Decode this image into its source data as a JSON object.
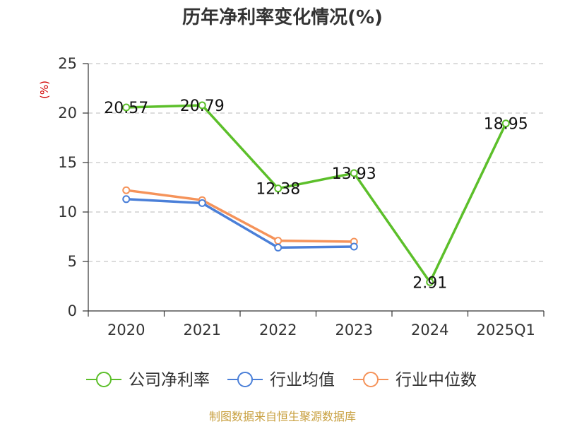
{
  "chart_data": {
    "type": "line",
    "title": "历年净利率变化情况(%)",
    "unit_label": "(%)",
    "categories": [
      "2020",
      "2021",
      "2022",
      "2023",
      "2024",
      "2025Q1"
    ],
    "ylim": [
      0,
      25
    ],
    "yticks": [
      0,
      5,
      10,
      15,
      20,
      25
    ],
    "grid": true,
    "legend_position": "bottom",
    "series": [
      {
        "name": "公司净利率",
        "color": "#5cbf2a",
        "values": [
          20.57,
          20.79,
          12.38,
          13.93,
          2.91,
          18.95
        ],
        "labels": [
          "20.57",
          "20.79",
          "12.38",
          "13.93",
          "2.91",
          "18.95"
        ]
      },
      {
        "name": "行业均值",
        "color": "#4a7fd8",
        "values": [
          11.3,
          10.9,
          6.4,
          6.5,
          null,
          null
        ]
      },
      {
        "name": "行业中位数",
        "color": "#f5935a",
        "values": [
          12.2,
          11.2,
          7.1,
          7.0,
          null,
          null
        ]
      }
    ],
    "source": "制图数据来自恒生聚源数据库"
  }
}
